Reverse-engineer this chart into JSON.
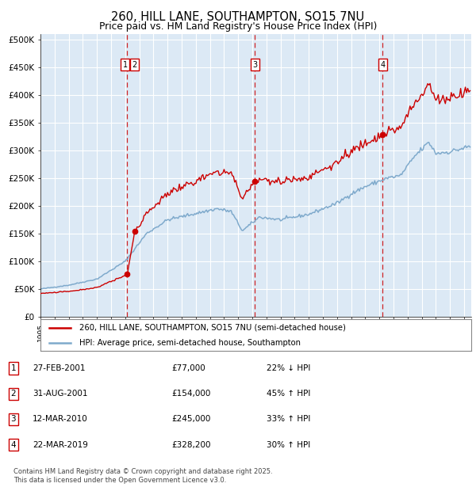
{
  "title": "260, HILL LANE, SOUTHAMPTON, SO15 7NU",
  "subtitle": "Price paid vs. HM Land Registry's House Price Index (HPI)",
  "ylim": [
    0,
    500000
  ],
  "yticks": [
    0,
    50000,
    100000,
    150000,
    200000,
    250000,
    300000,
    350000,
    400000,
    450000,
    500000
  ],
  "ytick_labels": [
    "£0",
    "£50K",
    "£100K",
    "£150K",
    "£200K",
    "£250K",
    "£300K",
    "£350K",
    "£400K",
    "£450K",
    "£500K"
  ],
  "background_color": "#ffffff",
  "plot_bg_color": "#dce9f5",
  "grid_color": "#ffffff",
  "sale_line_color": "#cc0000",
  "hpi_line_color": "#7faacc",
  "vline_color": "#cc0000",
  "marker_color": "#cc0000",
  "sale_points": [
    {
      "date_num": 2001.15,
      "price": 77000,
      "label": "1"
    },
    {
      "date_num": 2001.67,
      "price": 154000,
      "label": "2"
    },
    {
      "date_num": 2010.19,
      "price": 245000,
      "label": "3"
    },
    {
      "date_num": 2019.22,
      "price": 328200,
      "label": "4"
    }
  ],
  "legend_sale_label": "260, HILL LANE, SOUTHAMPTON, SO15 7NU (semi-detached house)",
  "legend_hpi_label": "HPI: Average price, semi-detached house, Southampton",
  "table_rows": [
    {
      "num": "1",
      "date": "27-FEB-2001",
      "price": "£77,000",
      "pct": "22% ↓ HPI"
    },
    {
      "num": "2",
      "date": "31-AUG-2001",
      "price": "£154,000",
      "pct": "45% ↑ HPI"
    },
    {
      "num": "3",
      "date": "12-MAR-2010",
      "price": "£245,000",
      "pct": "33% ↑ HPI"
    },
    {
      "num": "4",
      "date": "22-MAR-2019",
      "price": "£328,200",
      "pct": "30% ↑ HPI"
    }
  ],
  "footer": "Contains HM Land Registry data © Crown copyright and database right 2025.\nThis data is licensed under the Open Government Licence v3.0."
}
